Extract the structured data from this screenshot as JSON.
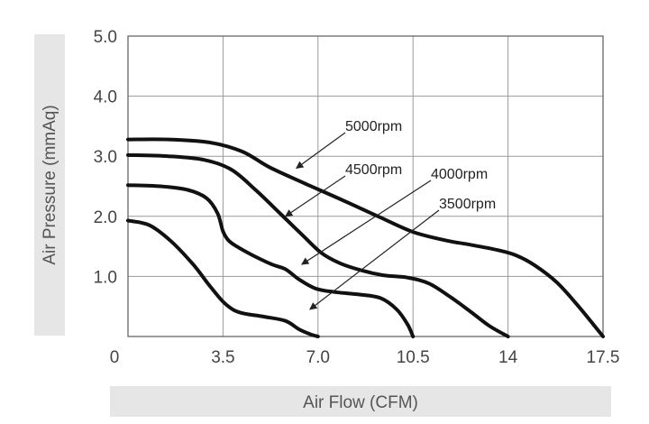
{
  "chart_data": {
    "type": "line",
    "xlabel": "Air Flow (CFM)",
    "ylabel": "Air Pressure (mmAq)",
    "xlim": [
      0,
      17.5
    ],
    "ylim": [
      0,
      5.0
    ],
    "x_ticks": [
      "0",
      "3.5",
      "7.0",
      "10.5",
      "14",
      "17.5"
    ],
    "x_tick_values": [
      0,
      3.5,
      7.0,
      10.5,
      14,
      17.5
    ],
    "y_ticks": [
      "1.0",
      "2.0",
      "3.0",
      "4.0",
      "5.0"
    ],
    "y_tick_values": [
      1.0,
      2.0,
      3.0,
      4.0,
      5.0
    ],
    "grid": true,
    "legend": "none",
    "series": [
      {
        "name": "5000rpm",
        "annotation_at": [
          6.2,
          2.8
        ],
        "x": [
          0,
          1.5,
          3.0,
          4.2,
          5.2,
          6.5,
          8.0,
          9.3,
          10.5,
          11.7,
          12.7,
          13.6,
          14.3,
          15.0,
          15.8,
          16.6,
          17.5
        ],
        "y": [
          3.28,
          3.28,
          3.23,
          3.08,
          2.82,
          2.55,
          2.25,
          1.98,
          1.74,
          1.6,
          1.52,
          1.44,
          1.35,
          1.18,
          0.9,
          0.5,
          0.0
        ]
      },
      {
        "name": "4500rpm",
        "annotation_at": [
          5.8,
          2.0
        ],
        "x": [
          0,
          1.5,
          2.8,
          3.8,
          4.7,
          5.6,
          6.4,
          7.1,
          7.8,
          8.6,
          9.4,
          10.3,
          11.1,
          11.9,
          12.6,
          13.3,
          14.0
        ],
        "y": [
          3.02,
          3.0,
          2.94,
          2.78,
          2.44,
          2.05,
          1.7,
          1.4,
          1.22,
          1.1,
          1.02,
          0.98,
          0.88,
          0.65,
          0.42,
          0.18,
          0.0
        ]
      },
      {
        "name": "4000rpm",
        "annotation_at": [
          6.4,
          1.2
        ],
        "x": [
          0,
          1.2,
          2.2,
          2.9,
          3.3,
          3.5,
          3.7,
          4.0,
          4.6,
          5.3,
          5.8,
          6.3,
          6.9,
          7.6,
          8.5,
          9.3,
          9.9,
          10.3,
          10.5
        ],
        "y": [
          2.52,
          2.5,
          2.44,
          2.3,
          2.05,
          1.75,
          1.6,
          1.5,
          1.35,
          1.2,
          1.12,
          0.95,
          0.8,
          0.74,
          0.7,
          0.64,
          0.45,
          0.2,
          0.0
        ]
      },
      {
        "name": "3500rpm",
        "annotation_at": [
          6.7,
          0.45
        ],
        "x": [
          0,
          0.8,
          1.6,
          2.4,
          3.0,
          3.5,
          3.9,
          4.3,
          5.0,
          5.8,
          6.3,
          6.7,
          7.0
        ],
        "y": [
          1.93,
          1.85,
          1.58,
          1.2,
          0.85,
          0.58,
          0.44,
          0.38,
          0.33,
          0.26,
          0.12,
          0.04,
          0.0
        ]
      }
    ],
    "annotations": [
      {
        "text": "5000rpm",
        "series": "5000rpm"
      },
      {
        "text": "4500rpm",
        "series": "4500rpm"
      },
      {
        "text": "4000rpm",
        "series": "4000rpm"
      },
      {
        "text": "3500rpm",
        "series": "3500rpm"
      }
    ],
    "colors": {
      "curve": "#111111",
      "grid": "#9a9a9a",
      "axis_title_band": "#e6e6e6"
    }
  }
}
